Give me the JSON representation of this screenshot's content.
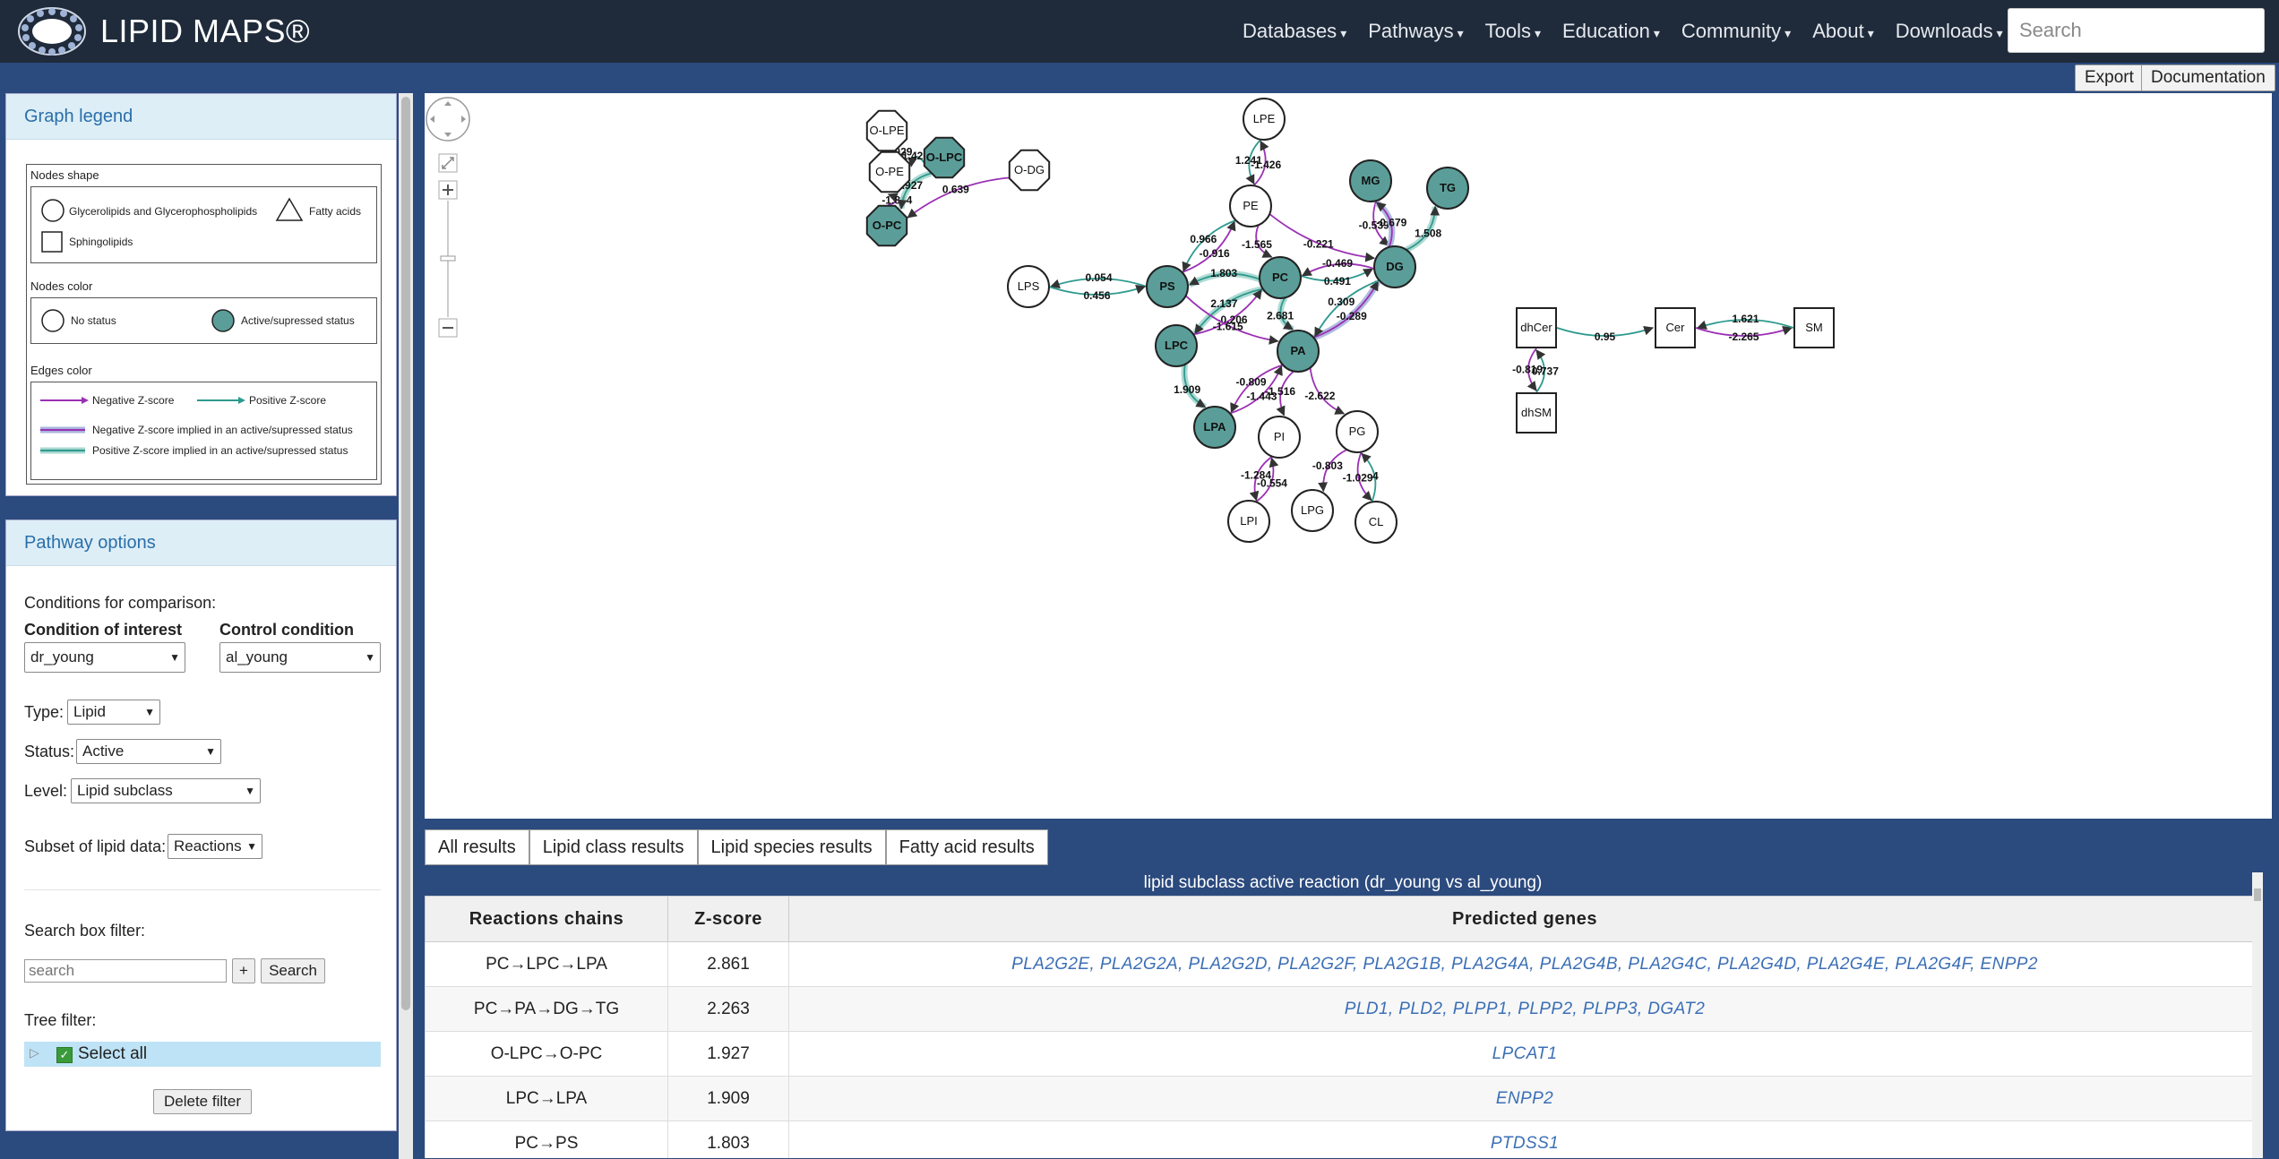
{
  "header": {
    "brand": "LIPID MAPS®",
    "nav": [
      {
        "label": "Databases"
      },
      {
        "label": "Pathways"
      },
      {
        "label": "Tools"
      },
      {
        "label": "Education"
      },
      {
        "label": "Community"
      },
      {
        "label": "About"
      },
      {
        "label": "Downloads"
      }
    ],
    "search_placeholder": "Search"
  },
  "toolbar": {
    "export": "Export",
    "documentation": "Documentation"
  },
  "legend": {
    "title": "Graph legend",
    "shapes_title": "Nodes shape",
    "shape_circle": "Glycerolipids and Glycerophospholipids",
    "shape_triangle": "Fatty acids",
    "shape_square": "Sphingolipids",
    "colors_title": "Nodes color",
    "no_status": "No status",
    "active_status": "Active/supressed status",
    "edges_title": "Edges color",
    "neg": "Negative Z-score",
    "pos": "Positive Z-score",
    "neg_active": "Negative Z-score implied in an active/supressed status",
    "pos_active": "Positive Z-score implied in an active/supressed status"
  },
  "options": {
    "title": "Pathway options",
    "conditions_label": "Conditions for comparison:",
    "interest_label": "Condition of interest",
    "control_label": "Control condition",
    "interest_value": "dr_young",
    "control_value": "al_young",
    "type_label": "Type:",
    "type_value": "Lipid",
    "status_label": "Status:",
    "status_value": "Active",
    "level_label": "Level:",
    "level_value": "Lipid subclass",
    "subset_label": "Subset of lipid data:",
    "subset_value": "Reactions",
    "search_label": "Search box filter:",
    "search_placeholder": "search",
    "plus": "+",
    "search_btn": "Search",
    "tree_label": "Tree filter:",
    "select_all": "Select all",
    "delete_filter": "Delete filter"
  },
  "graph": {
    "nodes": [
      {
        "id": "LPE",
        "label": "LPE",
        "shape": "circle",
        "active": false
      },
      {
        "id": "PE",
        "label": "PE",
        "shape": "circle",
        "active": false
      },
      {
        "id": "MG",
        "label": "MG",
        "shape": "circle",
        "active": true
      },
      {
        "id": "TG",
        "label": "TG",
        "shape": "circle",
        "active": true
      },
      {
        "id": "DG",
        "label": "DG",
        "shape": "circle",
        "active": true
      },
      {
        "id": "PC",
        "label": "PC",
        "shape": "circle",
        "active": true
      },
      {
        "id": "PS",
        "label": "PS",
        "shape": "circle",
        "active": true
      },
      {
        "id": "LPS",
        "label": "LPS",
        "shape": "circle",
        "active": false
      },
      {
        "id": "LPC",
        "label": "LPC",
        "shape": "circle",
        "active": true
      },
      {
        "id": "PA",
        "label": "PA",
        "shape": "circle",
        "active": true
      },
      {
        "id": "LPA",
        "label": "LPA",
        "shape": "circle",
        "active": true
      },
      {
        "id": "PI",
        "label": "PI",
        "shape": "circle",
        "active": false
      },
      {
        "id": "PG",
        "label": "PG",
        "shape": "circle",
        "active": false
      },
      {
        "id": "LPI",
        "label": "LPI",
        "shape": "circle",
        "active": false
      },
      {
        "id": "LPG",
        "label": "LPG",
        "shape": "circle",
        "active": false
      },
      {
        "id": "CL",
        "label": "CL",
        "shape": "circle",
        "active": false
      },
      {
        "id": "OLPE",
        "label": "O-LPE",
        "shape": "oct",
        "active": false
      },
      {
        "id": "OPE",
        "label": "O-PE",
        "shape": "oct",
        "active": false
      },
      {
        "id": "OLPC",
        "label": "O-LPC",
        "shape": "oct",
        "active": true
      },
      {
        "id": "ODG",
        "label": "O-DG",
        "shape": "oct",
        "active": false
      },
      {
        "id": "OPC",
        "label": "O-PC",
        "shape": "oct",
        "active": true
      },
      {
        "id": "dhCer",
        "label": "dhCer",
        "shape": "square",
        "active": false
      },
      {
        "id": "Cer",
        "label": "Cer",
        "shape": "square",
        "active": false
      },
      {
        "id": "SM",
        "label": "SM",
        "shape": "square",
        "active": false
      },
      {
        "id": "dhSM",
        "label": "dhSM",
        "shape": "square",
        "active": false
      }
    ],
    "edges": [
      {
        "from": "PE",
        "to": "LPE",
        "z": "-1.426",
        "kind": "neg"
      },
      {
        "from": "LPE",
        "to": "PE",
        "z": "1.241",
        "kind": "pos"
      },
      {
        "from": "MG",
        "to": "DG",
        "z": "-0.539",
        "kind": "neg"
      },
      {
        "from": "DG",
        "to": "MG",
        "z": "-0.679",
        "kind": "neg_active"
      },
      {
        "from": "DG",
        "to": "TG",
        "z": "1.508",
        "kind": "pos_active"
      },
      {
        "from": "PE",
        "to": "DG",
        "z": "-0.221",
        "kind": "neg"
      },
      {
        "from": "PE",
        "to": "PC",
        "z": "-1.565",
        "kind": "neg"
      },
      {
        "from": "PS",
        "to": "PE",
        "z": "-0.916",
        "kind": "neg"
      },
      {
        "from": "PE",
        "to": "PS",
        "z": "0.966",
        "kind": "pos"
      },
      {
        "from": "PC",
        "to": "DG",
        "z": "0.491",
        "kind": "pos"
      },
      {
        "from": "DG",
        "to": "PC",
        "z": "-0.469",
        "kind": "neg"
      },
      {
        "from": "PC",
        "to": "PS",
        "z": "1.803",
        "kind": "pos_active"
      },
      {
        "from": "PS",
        "to": "LPS",
        "z": "0.054",
        "kind": "pos"
      },
      {
        "from": "LPS",
        "to": "PS",
        "z": "0.456",
        "kind": "pos"
      },
      {
        "from": "PC",
        "to": "LPC",
        "z": "2.137",
        "kind": "pos_active"
      },
      {
        "from": "LPC",
        "to": "PC",
        "z": "-0.206",
        "kind": "neg"
      },
      {
        "from": "PS",
        "to": "PA",
        "z": "-1.615",
        "kind": "neg"
      },
      {
        "from": "PC",
        "to": "PA",
        "z": "2.681",
        "kind": "pos_active"
      },
      {
        "from": "PA",
        "to": "DG",
        "z": "-0.289",
        "kind": "neg_active"
      },
      {
        "from": "DG",
        "to": "PA",
        "z": "0.309",
        "kind": "pos"
      },
      {
        "from": "LPC",
        "to": "LPA",
        "z": "1.909",
        "kind": "pos_active"
      },
      {
        "from": "PA",
        "to": "LPA",
        "z": "-0.809",
        "kind": "neg"
      },
      {
        "from": "LPA",
        "to": "PA",
        "z": "-1.443",
        "kind": "neg"
      },
      {
        "from": "PA",
        "to": "PI",
        "z": "-1.516",
        "kind": "neg"
      },
      {
        "from": "PA",
        "to": "PG",
        "z": "-2.622",
        "kind": "neg"
      },
      {
        "from": "LPI",
        "to": "PI",
        "z": "-0.554",
        "kind": "neg"
      },
      {
        "from": "PI",
        "to": "LPI",
        "z": "-1.284",
        "kind": "neg"
      },
      {
        "from": "PG",
        "to": "LPG",
        "z": "-0.803",
        "kind": "neg"
      },
      {
        "from": "PG",
        "to": "CL",
        "z": "-1.029",
        "kind": "neg"
      },
      {
        "from": "CL",
        "to": "PG",
        "z": "4",
        "kind": "pos"
      },
      {
        "from": "OPE",
        "to": "OLPE",
        "z": "-2.029",
        "kind": "neg"
      },
      {
        "from": "OPC",
        "to": "OPE",
        "z": "-1.884",
        "kind": "neg"
      },
      {
        "from": "OLPC",
        "to": "OPE",
        "z": "1.425",
        "kind": "pos"
      },
      {
        "from": "OLPC",
        "to": "OPC",
        "z": "1.927",
        "kind": "pos_active"
      },
      {
        "from": "ODG",
        "to": "OPC",
        "z": "0.639",
        "kind": "neg"
      },
      {
        "from": "dhCer",
        "to": "Cer",
        "z": "0.95",
        "kind": "pos"
      },
      {
        "from": "Cer",
        "to": "SM",
        "z": "-2.265",
        "kind": "neg"
      },
      {
        "from": "SM",
        "to": "Cer",
        "z": "1.621",
        "kind": "pos"
      },
      {
        "from": "dhSM",
        "to": "dhCer",
        "z": "0.737",
        "kind": "pos"
      },
      {
        "from": "dhCer",
        "to": "dhSM",
        "z": "-0.819",
        "kind": "neg"
      }
    ]
  },
  "tabs": [
    "All results",
    "Lipid class results",
    "Lipid species results",
    "Fatty acid results"
  ],
  "results": {
    "title": "lipid subclass active reaction (dr_young vs al_young)",
    "headers": [
      "Reactions chains",
      "Z-score",
      "Predicted genes"
    ],
    "rows": [
      {
        "chain": "PC→LPC→LPA",
        "z": "2.861",
        "genes": "PLA2G2E, PLA2G2A, PLA2G2D, PLA2G2F, PLA2G1B, PLA2G4A, PLA2G4B, PLA2G4C, PLA2G4D, PLA2G4E, PLA2G4F, ENPP2"
      },
      {
        "chain": "PC→PA→DG→TG",
        "z": "2.263",
        "genes": "PLD1, PLD2, PLPP1, PLPP2, PLPP3, DGAT2"
      },
      {
        "chain": "O-LPC→O-PC",
        "z": "1.927",
        "genes": "LPCAT1"
      },
      {
        "chain": "LPC→LPA",
        "z": "1.909",
        "genes": "ENPP2"
      },
      {
        "chain": "PC→PS",
        "z": "1.803",
        "genes": "PTDSS1"
      }
    ]
  },
  "colors": {
    "neg": "#9b30b4",
    "pos": "#2e9a8e",
    "active_fill": "#5b9e99",
    "nav_bg": "#1f2b3b",
    "page_bg": "#2b4a7e"
  }
}
